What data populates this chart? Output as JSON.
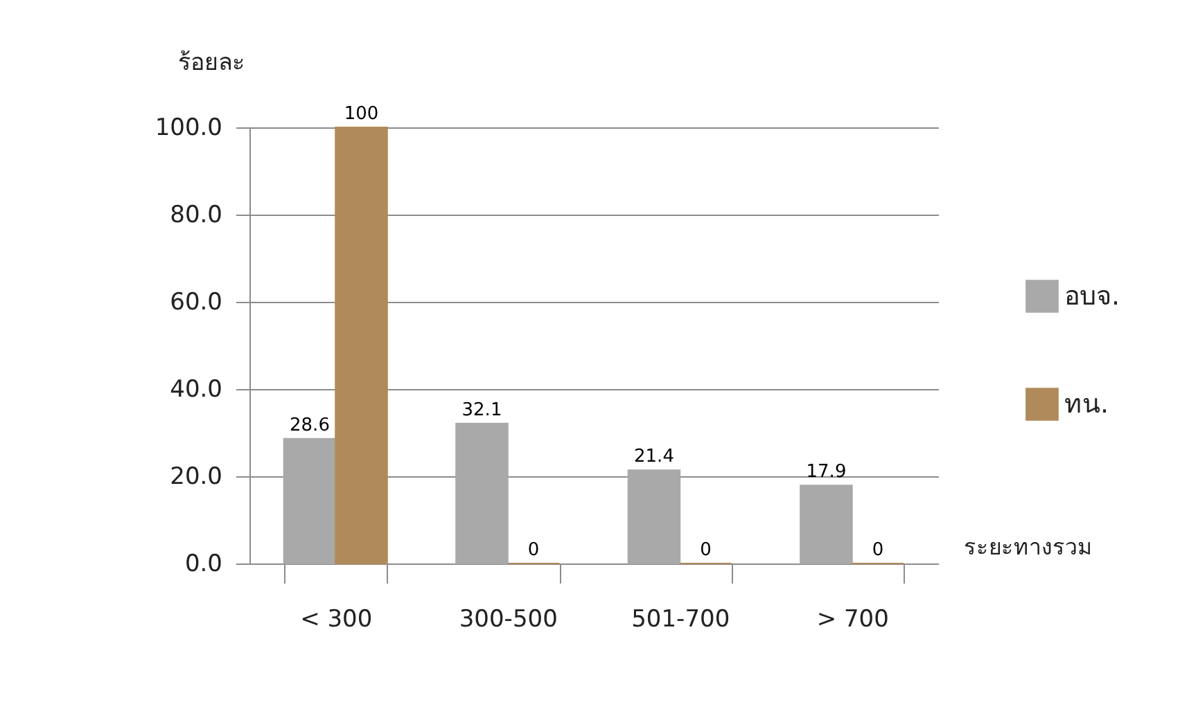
{
  "chart_data": {
    "type": "bar",
    "xlabel": "ระยะทางรวม",
    "ylabel": "ร้อยละ",
    "categories": [
      "< 300",
      "300-500",
      "501-700",
      "> 700"
    ],
    "series": [
      {
        "name": "อบจ.",
        "color": "#a9a9a9",
        "values": [
          28.6,
          32.1,
          21.4,
          17.9
        ]
      },
      {
        "name": "ทน.",
        "color": "#b08a5a",
        "values": [
          100,
          0,
          0,
          0
        ]
      }
    ],
    "ylim": [
      0,
      100
    ],
    "yticks": [
      {
        "value": 0,
        "label": "0.0"
      },
      {
        "value": 20,
        "label": "20.0"
      },
      {
        "value": 40,
        "label": "40.0"
      },
      {
        "value": 60,
        "label": "60.0"
      },
      {
        "value": 80,
        "label": "80.0"
      },
      {
        "value": 100,
        "label": "100.0"
      }
    ],
    "grid": "y",
    "legend": "right",
    "data_labels": true
  }
}
